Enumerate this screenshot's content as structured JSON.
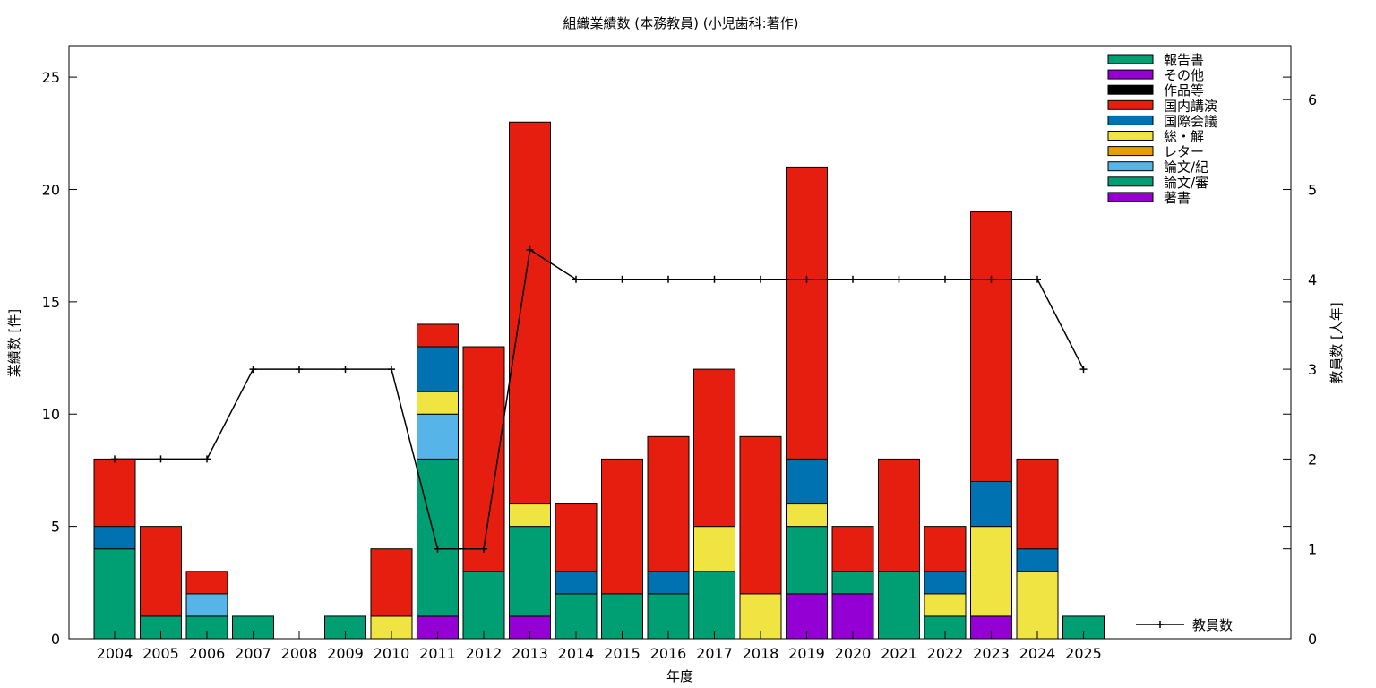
{
  "chart_data": {
    "type": "bar",
    "stacked": true,
    "title": "組織業績数 (本務教員) (小児歯科:著作)",
    "xlabel": "年度",
    "ylabel": "業績数 [件]",
    "y2label": "教員数 [人年]",
    "ylim": [
      0,
      26.4
    ],
    "y2lim": [
      0,
      6.6
    ],
    "yticks": [
      0,
      5,
      10,
      15,
      20,
      25
    ],
    "y2ticks": [
      0,
      1,
      2,
      3,
      4,
      5,
      6
    ],
    "categories": [
      "2004",
      "2005",
      "2006",
      "2007",
      "2008",
      "2009",
      "2010",
      "2011",
      "2012",
      "2013",
      "2014",
      "2015",
      "2016",
      "2017",
      "2018",
      "2019",
      "2020",
      "2021",
      "2022",
      "2023",
      "2024",
      "2025"
    ],
    "series": [
      {
        "name": "著書",
        "color": "#9400d3",
        "values": [
          0,
          0,
          0,
          0,
          0,
          0,
          0,
          1,
          0,
          1,
          0,
          0,
          0,
          0,
          0,
          2,
          2,
          0,
          0,
          1,
          0,
          0
        ]
      },
      {
        "name": "論文/審",
        "color": "#009e73",
        "values": [
          4,
          1,
          1,
          1,
          0,
          1,
          0,
          7,
          3,
          4,
          2,
          2,
          2,
          3,
          0,
          3,
          1,
          3,
          1,
          0,
          0,
          1
        ]
      },
      {
        "name": "論文/紀",
        "color": "#56b4e9",
        "values": [
          0,
          0,
          1,
          0,
          0,
          0,
          0,
          2,
          0,
          0,
          0,
          0,
          0,
          0,
          0,
          0,
          0,
          0,
          0,
          0,
          0,
          0
        ]
      },
      {
        "name": "レター",
        "color": "#e69f00",
        "values": [
          0,
          0,
          0,
          0,
          0,
          0,
          0,
          0,
          0,
          0,
          0,
          0,
          0,
          0,
          0,
          0,
          0,
          0,
          0,
          0,
          0,
          0
        ]
      },
      {
        "name": "総・解",
        "color": "#f0e442",
        "values": [
          0,
          0,
          0,
          0,
          0,
          0,
          1,
          1,
          0,
          1,
          0,
          0,
          0,
          2,
          2,
          1,
          0,
          0,
          1,
          4,
          3,
          0
        ]
      },
      {
        "name": "国際会議",
        "color": "#0072b2",
        "values": [
          1,
          0,
          0,
          0,
          0,
          0,
          0,
          2,
          0,
          0,
          1,
          0,
          1,
          0,
          0,
          2,
          0,
          0,
          1,
          2,
          1,
          0
        ]
      },
      {
        "name": "国内講演",
        "color": "#e51e10",
        "values": [
          3,
          4,
          1,
          0,
          0,
          0,
          3,
          1,
          10,
          17,
          3,
          6,
          6,
          7,
          7,
          13,
          2,
          5,
          2,
          12,
          4,
          0
        ]
      },
      {
        "name": "作品等",
        "color": "#000000",
        "values": [
          0,
          0,
          0,
          0,
          0,
          0,
          0,
          0,
          0,
          0,
          0,
          0,
          0,
          0,
          0,
          0,
          0,
          0,
          0,
          0,
          0,
          0
        ]
      },
      {
        "name": "その他",
        "color": "#9400d3",
        "values": [
          0,
          0,
          0,
          0,
          0,
          0,
          0,
          0,
          0,
          0,
          0,
          0,
          0,
          0,
          0,
          0,
          0,
          0,
          0,
          0,
          0,
          0
        ]
      },
      {
        "name": "報告書",
        "color": "#009e73",
        "values": [
          0,
          0,
          0,
          0,
          0,
          0,
          0,
          0,
          0,
          0,
          0,
          0,
          0,
          0,
          0,
          0,
          0,
          0,
          0,
          0,
          0,
          0
        ]
      }
    ],
    "legend_order": [
      "報告書",
      "その他",
      "作品等",
      "国内講演",
      "国際会議",
      "総・解",
      "レター",
      "論文/紀",
      "論文/審",
      "著書"
    ],
    "legend_position": "top-right",
    "line_series": {
      "name": "教員数",
      "color": "#000000",
      "axis": "right",
      "values": [
        2,
        2,
        2,
        3,
        3,
        3,
        3,
        1,
        1,
        4.33,
        4,
        4,
        4,
        4,
        4,
        4,
        4,
        4,
        4,
        4,
        4,
        3
      ]
    },
    "grid": false
  }
}
